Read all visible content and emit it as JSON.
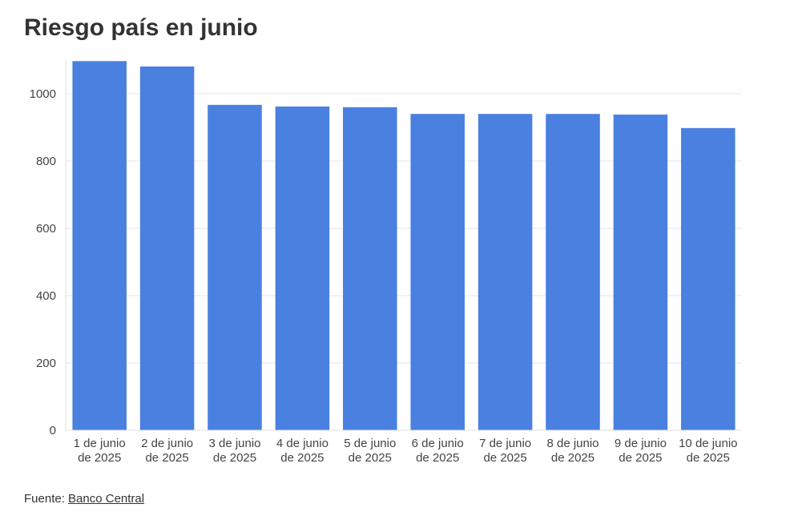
{
  "chart_data": {
    "type": "bar",
    "title": "Riesgo país en junio",
    "categories": [
      "1 de junio de 2025",
      "2 de junio de 2025",
      "3 de junio de 2025",
      "4 de junio de 2025",
      "5 de junio de 2025",
      "6 de junio de 2025",
      "7 de junio de 2025",
      "8 de junio de 2025",
      "9 de junio de 2025",
      "10 de junio de 2025"
    ],
    "values": [
      1097,
      1081,
      967,
      962,
      960,
      940,
      940,
      940,
      938,
      898
    ],
    "color": "#4a80e0",
    "ylim": [
      0,
      1100
    ],
    "yticks": [
      0,
      200,
      400,
      600,
      800,
      1000
    ],
    "grid": true,
    "source_label": "Fuente:",
    "source_link": "Banco Central"
  }
}
